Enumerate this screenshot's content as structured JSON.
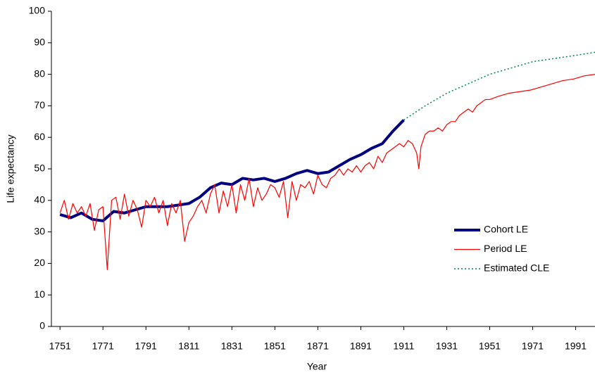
{
  "chart_data": {
    "type": "line",
    "x_label": "Year",
    "y_label": "Life expectancy",
    "xlim": [
      1747,
      2000
    ],
    "xticks": [
      1751,
      1771,
      1791,
      1811,
      1831,
      1851,
      1871,
      1891,
      1911,
      1931,
      1951,
      1971,
      1991
    ],
    "ylim": [
      0,
      100
    ],
    "yticks": [
      0,
      10,
      20,
      30,
      40,
      50,
      60,
      70,
      80,
      90,
      100
    ],
    "legend": "right",
    "series": [
      {
        "name": "Cohort LE",
        "color": "#000080",
        "linewidth": 4,
        "dash": "solid",
        "x": [
          1751,
          1756,
          1761,
          1766,
          1771,
          1776,
          1781,
          1786,
          1791,
          1796,
          1801,
          1806,
          1811,
          1816,
          1821,
          1826,
          1831,
          1836,
          1841,
          1846,
          1851,
          1856,
          1861,
          1866,
          1871,
          1876,
          1881,
          1886,
          1891,
          1896,
          1901,
          1906,
          1911
        ],
        "values": [
          35.5,
          34.5,
          36,
          34,
          33.5,
          36.5,
          36,
          37,
          38,
          38,
          38,
          38.5,
          39,
          41,
          44,
          45.5,
          45,
          47,
          46.5,
          47,
          46,
          47,
          48.5,
          49.5,
          48.5,
          49,
          51,
          53,
          54.5,
          56.5,
          58,
          62,
          65.5
        ]
      },
      {
        "name": "Period LE",
        "color": "#ff0000",
        "linewidth": 1.2,
        "dash": "solid",
        "x": [
          1751,
          1753,
          1755,
          1757,
          1759,
          1761,
          1763,
          1765,
          1767,
          1769,
          1771,
          1773,
          1775,
          1777,
          1779,
          1781,
          1783,
          1785,
          1787,
          1789,
          1791,
          1793,
          1795,
          1797,
          1799,
          1801,
          1803,
          1805,
          1807,
          1809,
          1811,
          1813,
          1815,
          1817,
          1819,
          1821,
          1823,
          1825,
          1827,
          1829,
          1831,
          1833,
          1835,
          1837,
          1839,
          1841,
          1843,
          1845,
          1847,
          1849,
          1851,
          1853,
          1855,
          1857,
          1859,
          1861,
          1863,
          1865,
          1867,
          1869,
          1871,
          1873,
          1875,
          1877,
          1879,
          1881,
          1883,
          1885,
          1887,
          1889,
          1891,
          1893,
          1895,
          1897,
          1899,
          1901,
          1903,
          1905,
          1907,
          1909,
          1911,
          1913,
          1915,
          1917,
          1918,
          1919,
          1921,
          1923,
          1925,
          1927,
          1929,
          1931,
          1933,
          1935,
          1937,
          1939,
          1941,
          1943,
          1945,
          1947,
          1949,
          1951,
          1955,
          1960,
          1965,
          1970,
          1975,
          1980,
          1985,
          1990,
          1995,
          2000
        ],
        "values": [
          36,
          40,
          34,
          39,
          36,
          38,
          35,
          39,
          30.5,
          37,
          38,
          18,
          40,
          41,
          34,
          42,
          35,
          40,
          37,
          31.5,
          40,
          38,
          41,
          36,
          40,
          32,
          39,
          36,
          40,
          27,
          33,
          35,
          38,
          40,
          36,
          42,
          45,
          36,
          43,
          38,
          45,
          36,
          45,
          40,
          47,
          38,
          44,
          40,
          42,
          45,
          44,
          41,
          46,
          34.5,
          46,
          40,
          45,
          44,
          46,
          42,
          48,
          45,
          44,
          47,
          48,
          50,
          48,
          50,
          49,
          51,
          49,
          51,
          52,
          50,
          54,
          52,
          55,
          56,
          57,
          58,
          57,
          59,
          58,
          55,
          50,
          57,
          61,
          62,
          62,
          63,
          62,
          64,
          65,
          65,
          67,
          68,
          69,
          68,
          70,
          71,
          72,
          72,
          73,
          74,
          74.5,
          75,
          76,
          77,
          78,
          78.5,
          79.5,
          80
        ]
      },
      {
        "name": "Estimated CLE",
        "color": "#008060",
        "linewidth": 1.5,
        "dash": "dotted",
        "x": [
          1911,
          1921,
          1931,
          1941,
          1951,
          1961,
          1971,
          1981,
          1991,
          2000
        ],
        "values": [
          65.5,
          70,
          74,
          77,
          80,
          82,
          84,
          85,
          86,
          87
        ]
      }
    ]
  }
}
